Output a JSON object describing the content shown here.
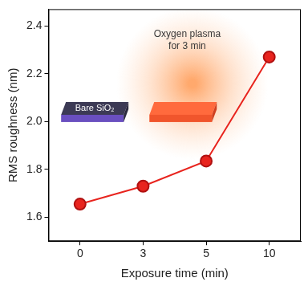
{
  "chart_data": {
    "type": "line",
    "x_label": "Exposure time (min)",
    "y_label": "RMS roughness (nm)",
    "categories": [
      "0",
      "3",
      "5",
      "10"
    ],
    "values": [
      1.655,
      1.73,
      1.835,
      2.27
    ],
    "color": "#e8241e",
    "marker": "circle",
    "ylim": [
      1.5,
      2.47
    ],
    "yticks": [
      1.6,
      1.8,
      {
        "value": 2.0,
        "label": "2.0"
      },
      2.2,
      2.4
    ],
    "grid": false,
    "annotations": [
      "Bare SiO₂",
      "Oxygen plasma for 3 min"
    ]
  }
}
